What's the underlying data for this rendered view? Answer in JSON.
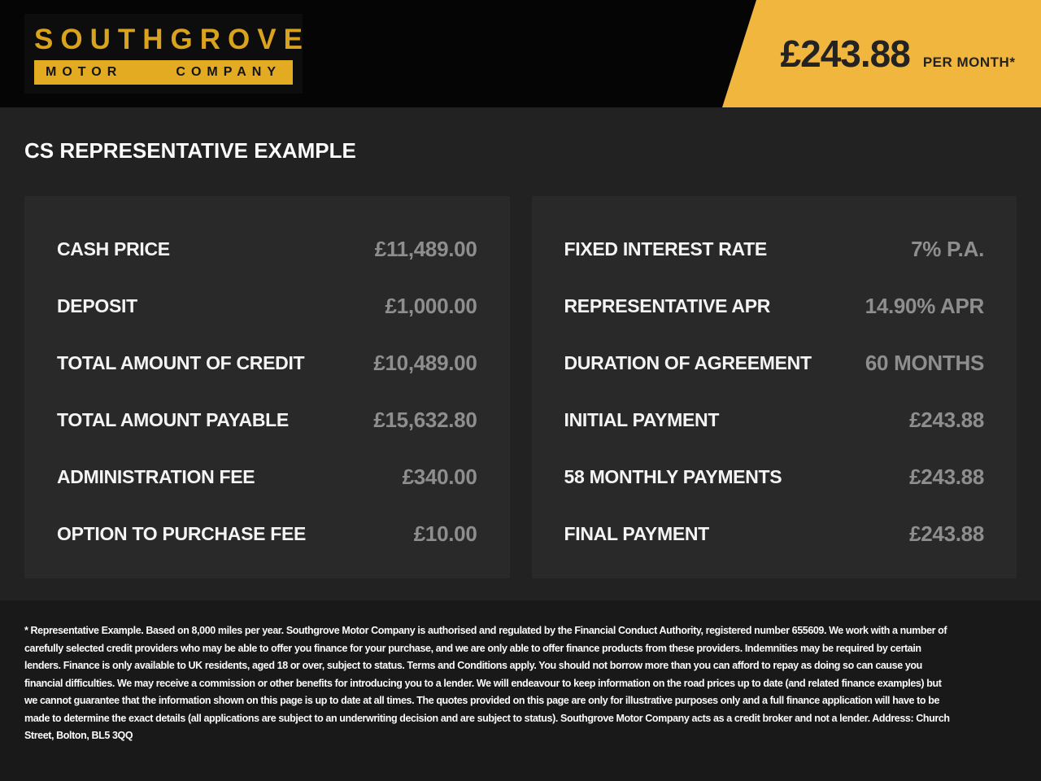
{
  "header": {
    "logo": {
      "name": "SOUTHGROVE",
      "sub_word1": "MOTOR",
      "sub_word2": "COMPANY"
    },
    "price_banner": {
      "amount": "£243.88",
      "period": "PER MONTH*"
    }
  },
  "page_title": "CS REPRESENTATIVE EXAMPLE",
  "panels": {
    "left": {
      "rows": [
        {
          "label": "CASH PRICE",
          "value": "£11,489.00"
        },
        {
          "label": "DEPOSIT",
          "value": "£1,000.00"
        },
        {
          "label": "TOTAL AMOUNT OF CREDIT",
          "value": "£10,489.00"
        },
        {
          "label": "TOTAL AMOUNT PAYABLE",
          "value": "£15,632.80"
        },
        {
          "label": "ADMINISTRATION FEE",
          "value": "£340.00"
        },
        {
          "label": "OPTION TO PURCHASE FEE",
          "value": "£10.00"
        }
      ]
    },
    "right": {
      "rows": [
        {
          "label": "FIXED INTEREST RATE",
          "value": "7% P.A."
        },
        {
          "label": "REPRESENTATIVE APR",
          "value": "14.90% APR"
        },
        {
          "label": "DURATION OF AGREEMENT",
          "value": "60 MONTHS"
        },
        {
          "label": "INITIAL PAYMENT",
          "value": "£243.88"
        },
        {
          "label": "58 MONTHLY PAYMENTS",
          "value": "£243.88"
        },
        {
          "label": "FINAL PAYMENT",
          "value": "£243.88"
        }
      ]
    }
  },
  "footer": {
    "disclaimer": "* Representative Example. Based on 8,000 miles per year. Southgrove Motor Company is authorised and regulated by the Financial Conduct Authority, registered number 655609. We work with a number of carefully selected credit providers who may be able to offer you finance for your purchase, and we are only able to offer finance products from these providers. Indemnities may be required by certain lenders. Finance is only available to UK residents, aged 18 or over, subject to status. Terms and Conditions apply. You should not borrow more than you can afford to repay as doing so can cause you financial difficulties. We may receive a commission or other benefits for introducing you to a lender. We will endeavour to keep information on the road prices up to date (and related finance examples) but we cannot guarantee that the information shown on this page is up to date at all times. The quotes provided on this page are only for illustrative purposes only and a full finance application will have to be made to determine the exact details (all applications are subject to an underwriting decision and are subject to status). Southgrove Motor Company acts as a credit broker and not a lender. Address: Church Street, Bolton, BL5 3QQ"
  },
  "colors": {
    "accent_yellow": "#f1b63e",
    "logo_gold": "#d9a31e",
    "value_gray": "#8e8e8e",
    "panel_bg": "#292929",
    "header_bg": "#050505",
    "footer_bg": "#191919",
    "page_bg": "#222223"
  }
}
